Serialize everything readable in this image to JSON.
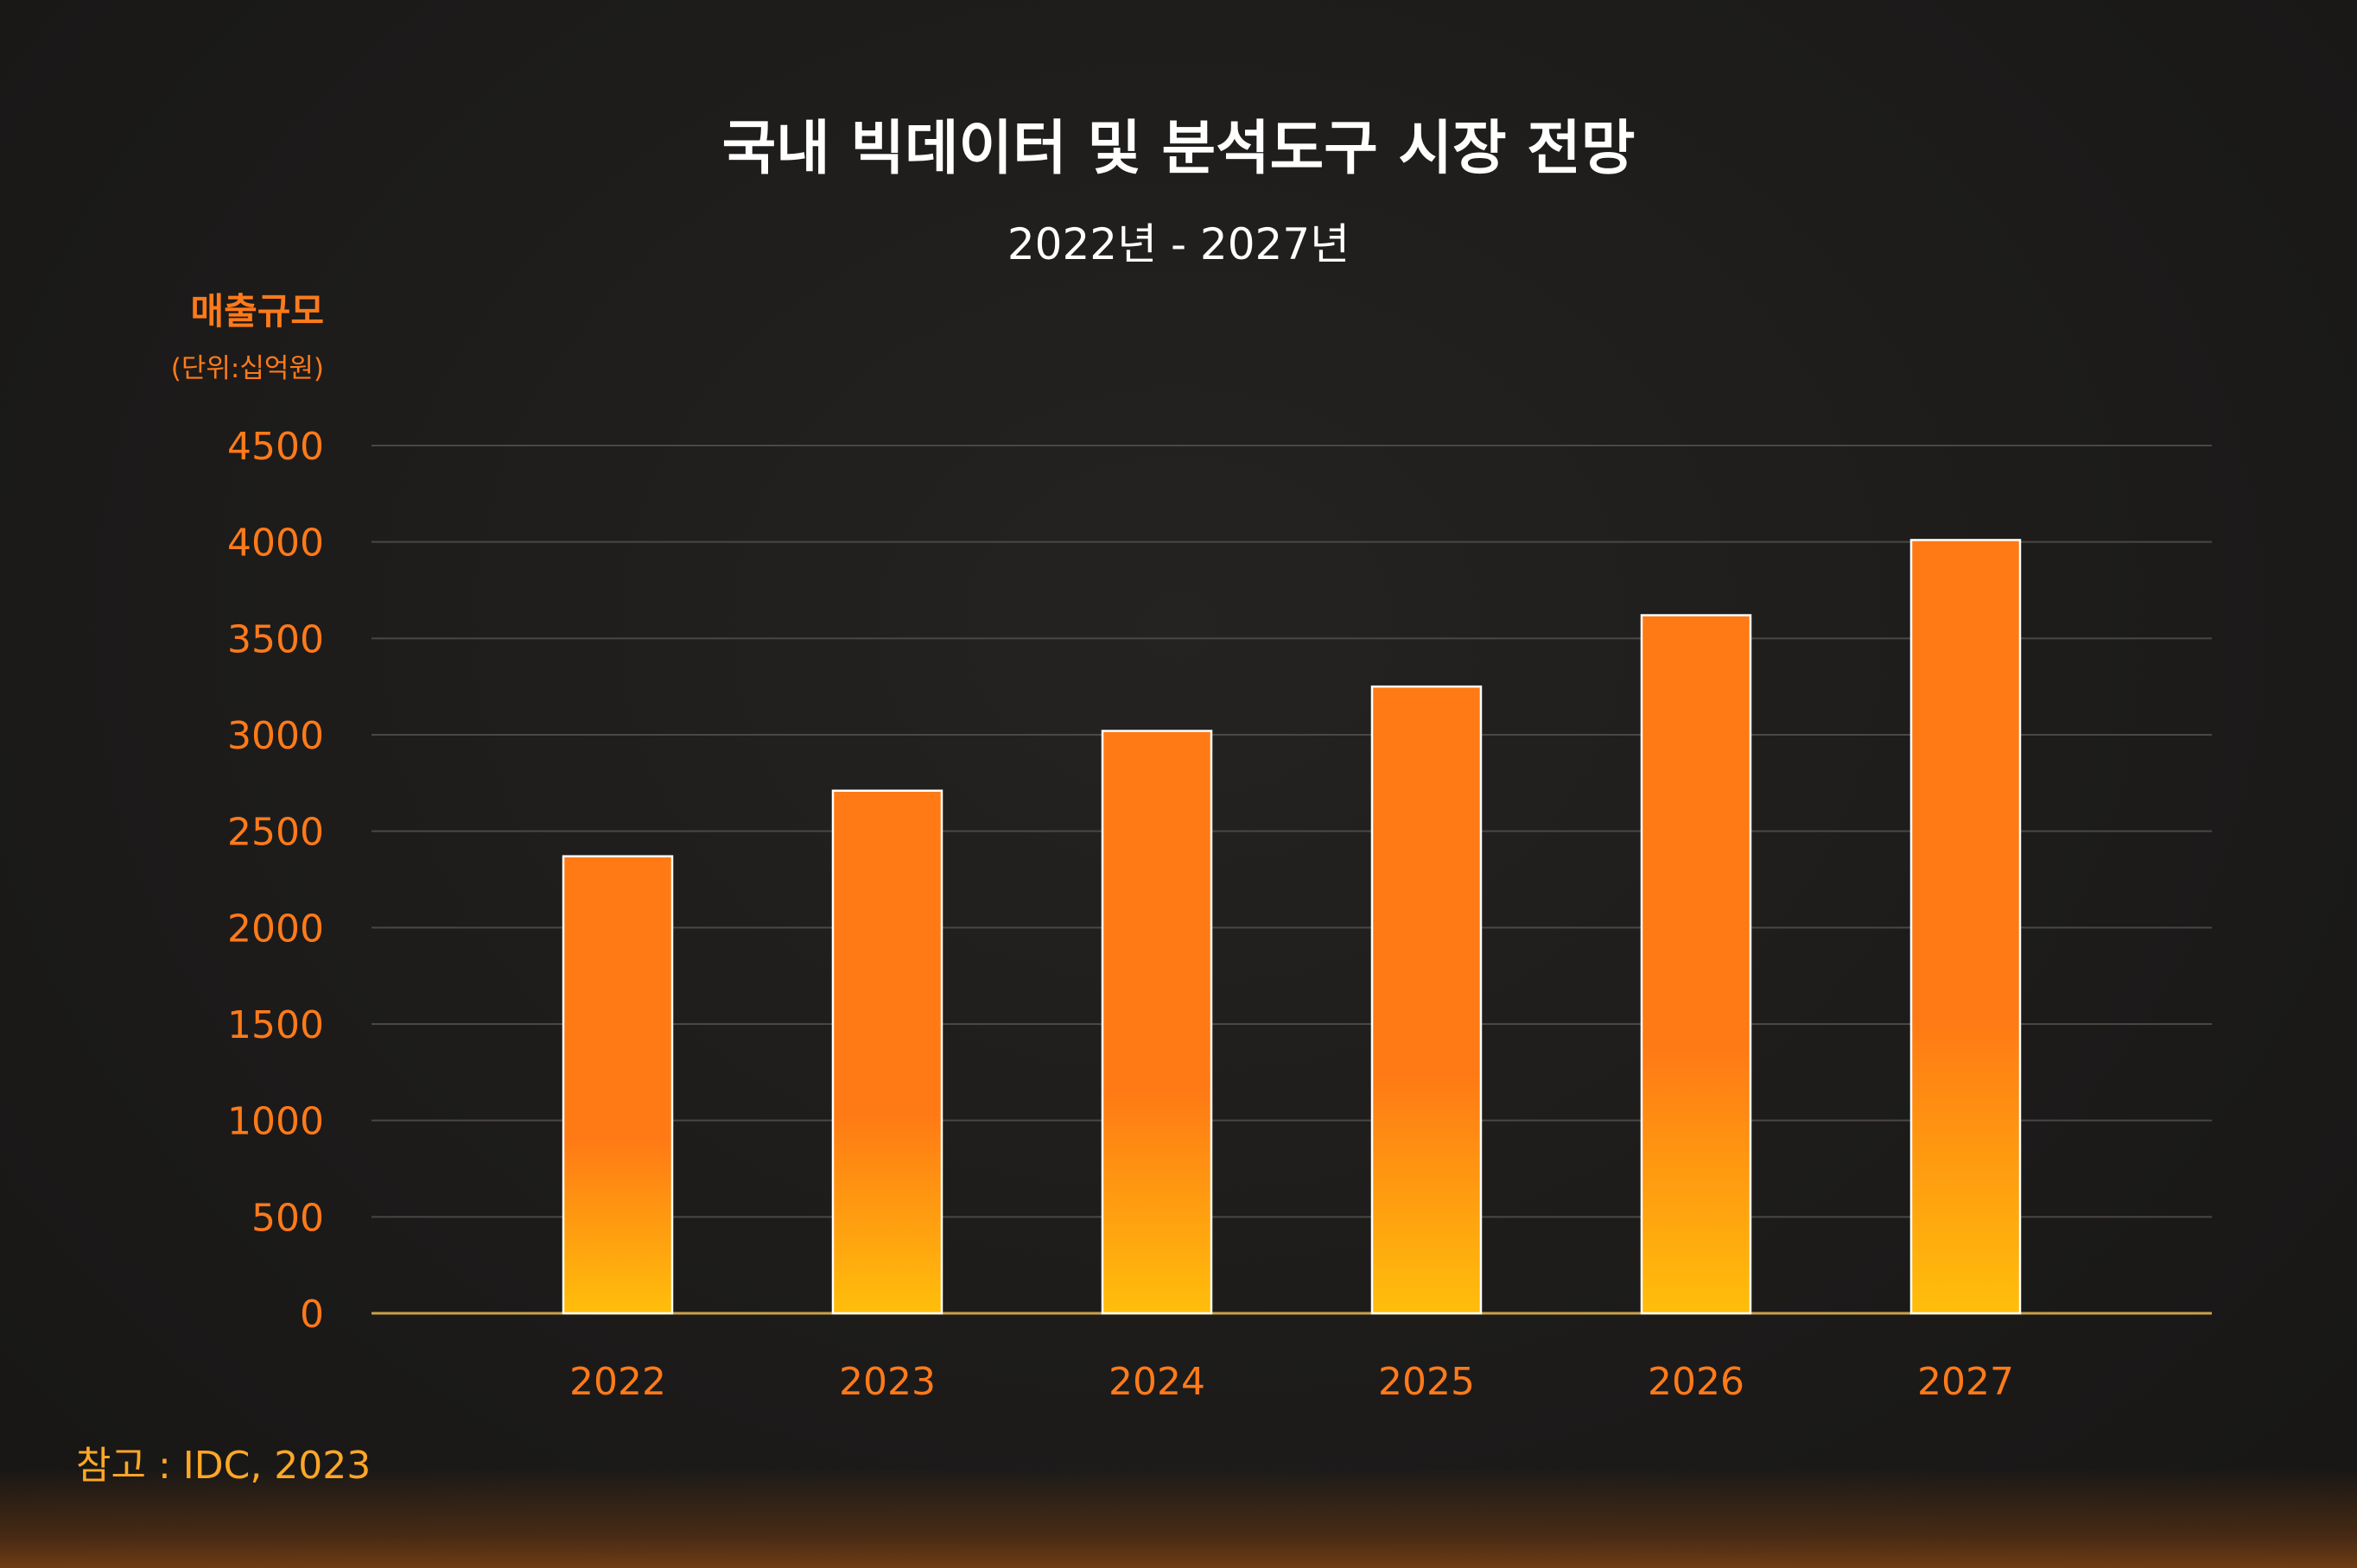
{
  "chart_data": {
    "type": "bar",
    "title": "국내 빅데이터 및 분석도구 시장 전망",
    "subtitle": "2022년 - 2027년",
    "ylabel": "매출규모",
    "yunit": "(단위:십억원)",
    "categories": [
      "2022",
      "2023",
      "2024",
      "2025",
      "2026",
      "2027"
    ],
    "values": [
      2370,
      2710,
      3020,
      3250,
      3620,
      4010
    ],
    "ylim": [
      0,
      4500
    ],
    "yticks": [
      "0",
      "500",
      "1000",
      "1500",
      "2000",
      "2500",
      "3000",
      "3500",
      "4000",
      "4500"
    ],
    "grid": true,
    "source": "참고 : IDC, 2023",
    "colors": {
      "bar_top": "#ff7a15",
      "bar_bottom": "#ffbe0b",
      "bar_outline": "#ffffff",
      "accent_text": "#ff7a1a",
      "source_text": "#ffa726",
      "title_text": "#ffffff",
      "background": "#1c1b1a"
    }
  }
}
